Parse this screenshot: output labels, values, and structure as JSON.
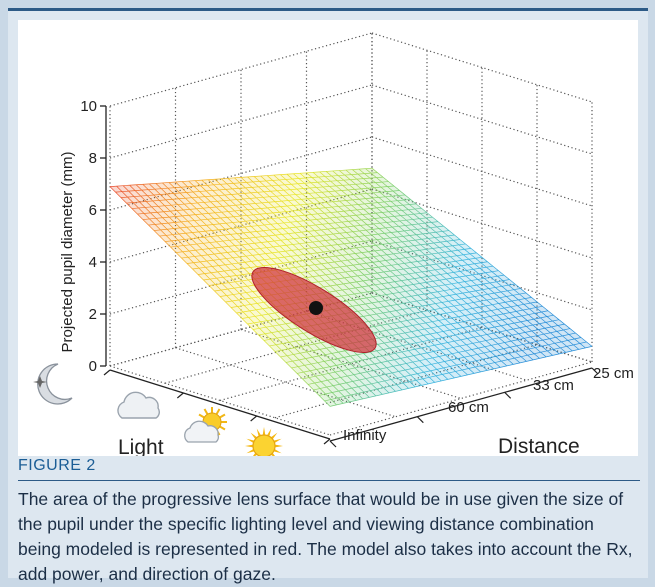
{
  "figure": {
    "label": "FIGURE 2",
    "caption": "The area of the progressive lens surface that would be in use given the size of the pupil under the specific lighting level and viewing distance combination being modeled is represented in red. The model also takes into account the Rx, add power, and direction of gaze."
  },
  "chart_data": {
    "type": "surface3d",
    "zlabel": "Projected pupil diameter (mm)",
    "z_ticks": [
      "0",
      "2",
      "4",
      "6",
      "8",
      "10"
    ],
    "zlim": [
      0,
      10
    ],
    "axes": {
      "light_label": "Light",
      "distance_label": "Distance",
      "distance_ticks": [
        "Infinity",
        "60 cm",
        "33 cm",
        "25 cm"
      ]
    },
    "light_levels_icons": [
      "moon-icon",
      "cloud-icon",
      "partly-sunny-icon",
      "sun-icon"
    ],
    "surface_corners_z": {
      "dark_far": 6.9,
      "dark_near": 4.8,
      "bright_far": 1.1,
      "bright_near": 0.6
    },
    "highlight": {
      "label_color": "#d0303a",
      "pupil_point_z": 2.5
    },
    "colors": {
      "high": "#e83a2b",
      "mid": "#f0d020",
      "low": "#2fa0e0"
    }
  }
}
